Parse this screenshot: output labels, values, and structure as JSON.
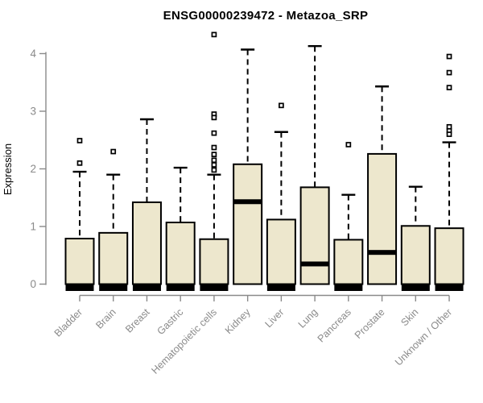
{
  "chart_data": {
    "type": "boxplot",
    "title": "ENSG00000239472 - Metazoa_SRP",
    "ylabel": "Expression",
    "xlabel": "",
    "ylim": [
      0,
      4
    ],
    "yticks": [
      0,
      1,
      2,
      3,
      4
    ],
    "grid": false,
    "legend": "none",
    "categories": [
      "Bladder",
      "Brain",
      "Breast",
      "Gastric",
      "Hematopoietic cells",
      "Kidney",
      "Liver",
      "Lung",
      "Pancreas",
      "Prostate",
      "Skin",
      "Unknown / Other"
    ],
    "series": [
      {
        "name": "Bladder",
        "whisker_low": 0,
        "q1": 0,
        "median": 0.03,
        "q3": 0.79,
        "whisker_high": 1.95,
        "outliers": [
          2.49,
          2.1
        ]
      },
      {
        "name": "Brain",
        "whisker_low": 0,
        "q1": 0,
        "median": 0.03,
        "q3": 0.89,
        "whisker_high": 1.9,
        "outliers": [
          2.3
        ]
      },
      {
        "name": "Breast",
        "whisker_low": 0,
        "q1": 0,
        "median": 0.03,
        "q3": 1.42,
        "whisker_high": 2.86,
        "outliers": []
      },
      {
        "name": "Gastric",
        "whisker_low": 0,
        "q1": 0,
        "median": 0.03,
        "q3": 1.07,
        "whisker_high": 2.02,
        "outliers": []
      },
      {
        "name": "Hematopoietic cells",
        "whisker_low": 0,
        "q1": 0,
        "median": 0.03,
        "q3": 0.78,
        "whisker_high": 1.9,
        "outliers": [
          4.33,
          2.95,
          2.89,
          2.62,
          2.37,
          2.25,
          2.15,
          2.07,
          1.98
        ]
      },
      {
        "name": "Kidney",
        "whisker_low": 0,
        "q1": 0,
        "median": 1.43,
        "q3": 2.08,
        "whisker_high": 4.07,
        "outliers": []
      },
      {
        "name": "Liver",
        "whisker_low": 0,
        "q1": 0,
        "median": 0.03,
        "q3": 1.12,
        "whisker_high": 2.64,
        "outliers": [
          3.1
        ]
      },
      {
        "name": "Lung",
        "whisker_low": 0,
        "q1": 0,
        "median": 0.35,
        "q3": 1.68,
        "whisker_high": 4.13,
        "outliers": []
      },
      {
        "name": "Pancreas",
        "whisker_low": 0,
        "q1": 0,
        "median": 0.03,
        "q3": 0.77,
        "whisker_high": 1.55,
        "outliers": [
          2.42
        ]
      },
      {
        "name": "Prostate",
        "whisker_low": 0,
        "q1": 0,
        "median": 0.55,
        "q3": 2.26,
        "whisker_high": 3.43,
        "outliers": []
      },
      {
        "name": "Skin",
        "whisker_low": 0,
        "q1": 0,
        "median": 0.03,
        "q3": 1.01,
        "whisker_high": 1.69,
        "outliers": []
      },
      {
        "name": "Unknown / Other",
        "whisker_low": 0,
        "q1": 0,
        "median": 0.03,
        "q3": 0.97,
        "whisker_high": 2.46,
        "outliers": [
          3.95,
          3.67,
          3.41,
          2.73,
          2.66,
          2.6
        ]
      }
    ]
  },
  "colors": {
    "box_fill": "#EDE7CD",
    "box_border": "#000000",
    "median": "#000000",
    "axis": "#8a8a8a",
    "tick_text": "#8a8a8a",
    "title_text": "#000000",
    "background": "#ffffff"
  }
}
